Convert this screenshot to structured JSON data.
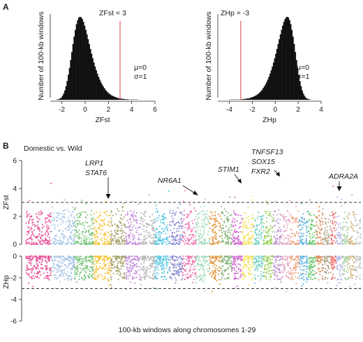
{
  "panel_a_label": "A",
  "panel_b_label": "B",
  "chart_data": [
    {
      "type": "histogram",
      "ylabel": "Number of 100-kb windows",
      "xlabel": "ZFst",
      "xlim": [
        -3,
        6
      ],
      "xticks": [
        -2,
        0,
        2,
        4,
        6
      ],
      "bins_from": -2.5,
      "bin_width": 0.1,
      "counts": [
        1,
        2,
        3,
        5,
        8,
        14,
        22,
        33,
        48,
        66,
        88,
        112,
        140,
        168,
        196,
        222,
        246,
        266,
        280,
        289,
        292,
        290,
        284,
        274,
        261,
        246,
        230,
        213,
        196,
        179,
        162,
        146,
        131,
        117,
        104,
        92,
        81,
        71,
        62,
        54,
        47,
        41,
        35,
        30,
        26,
        22,
        19,
        16,
        14,
        12,
        10,
        9,
        7,
        6,
        5,
        5,
        4,
        3,
        3,
        2,
        2,
        2,
        1,
        1,
        1,
        1,
        1,
        1,
        1,
        1
      ],
      "threshold": 3,
      "threshold_label": "ZFst = 3",
      "annotation_lines": [
        "μ=0",
        "σ=1"
      ]
    },
    {
      "type": "histogram",
      "ylabel": "Number of 100-kb windows",
      "xlabel": "ZHp",
      "xlim": [
        -5,
        4
      ],
      "xticks": [
        -4,
        -2,
        0,
        2,
        4
      ],
      "bins_from": -4.0,
      "bin_width": 0.1,
      "counts": [
        1,
        1,
        1,
        1,
        1,
        1,
        1,
        1,
        1,
        2,
        2,
        2,
        3,
        3,
        4,
        5,
        5,
        6,
        7,
        9,
        10,
        12,
        14,
        16,
        19,
        22,
        26,
        30,
        35,
        41,
        47,
        54,
        62,
        71,
        81,
        92,
        104,
        117,
        131,
        146,
        162,
        179,
        196,
        213,
        230,
        246,
        261,
        274,
        284,
        290,
        292,
        289,
        280,
        266,
        246,
        222,
        196,
        168,
        140,
        112,
        88,
        66,
        48,
        33,
        22,
        14,
        8,
        5,
        3,
        2,
        1
      ],
      "threshold": -3,
      "threshold_label": "ZHp = -3",
      "annotation_lines": [
        "μ=0",
        "σ=1"
      ]
    },
    {
      "type": "scatter",
      "title": "Domestic  vs. Wild",
      "xlabel": "100-kb windows along chromosomes 1-29",
      "ylabel_top": "ZFst",
      "ylabel_bottom": "ZHp",
      "ylim_top": [
        0,
        6
      ],
      "yticks_top": [
        0,
        2,
        4,
        6
      ],
      "ylim_bottom": [
        -6,
        0
      ],
      "yticks_bottom": [
        0,
        -2,
        -4,
        -6
      ],
      "threshold_top": 3,
      "threshold_bottom": -3,
      "chromosome_colors": [
        "#e8559a",
        "#a9c7e6",
        "#78c47a",
        "#f7c53d",
        "#a9a46e",
        "#c58fd9",
        "#b7b7b7",
        "#5cc7e3",
        "#8f8fd6",
        "#ef7bb7",
        "#a6dcc0",
        "#e0963d",
        "#86b47a",
        "#d16bd1",
        "#f4e259",
        "#7ad1c9",
        "#9bd15a",
        "#c09bd1",
        "#e8aac5",
        "#f0a98a",
        "#64b3e0",
        "#66c76a",
        "#dd8f5c",
        "#b6aa90",
        "#f26c6c",
        "#b1b7e6",
        "#a8d1a0",
        "#d3b27a",
        "#c8c8c8"
      ],
      "chromosome_windows": [
        200,
        180,
        150,
        130,
        120,
        118,
        110,
        113,
        105,
        103,
        107,
        91,
        84,
        83,
        85,
        81,
        75,
        65,
        64,
        72,
        71,
        62,
        52,
        62,
        43,
        51,
        45,
        46,
        51
      ],
      "genes": [
        {
          "label": "LRP1",
          "row": 0
        },
        {
          "label": "STAT6",
          "row": 1
        },
        {
          "label": "NR6A1",
          "row": 0
        },
        {
          "label": "STIM1",
          "row": 0
        },
        {
          "label": "TNFSF13",
          "row": 0
        },
        {
          "label": "SOX15",
          "row": 1
        },
        {
          "label": "FXR2",
          "row": 2
        },
        {
          "label": "ADRA2A",
          "row": 0
        }
      ]
    }
  ]
}
